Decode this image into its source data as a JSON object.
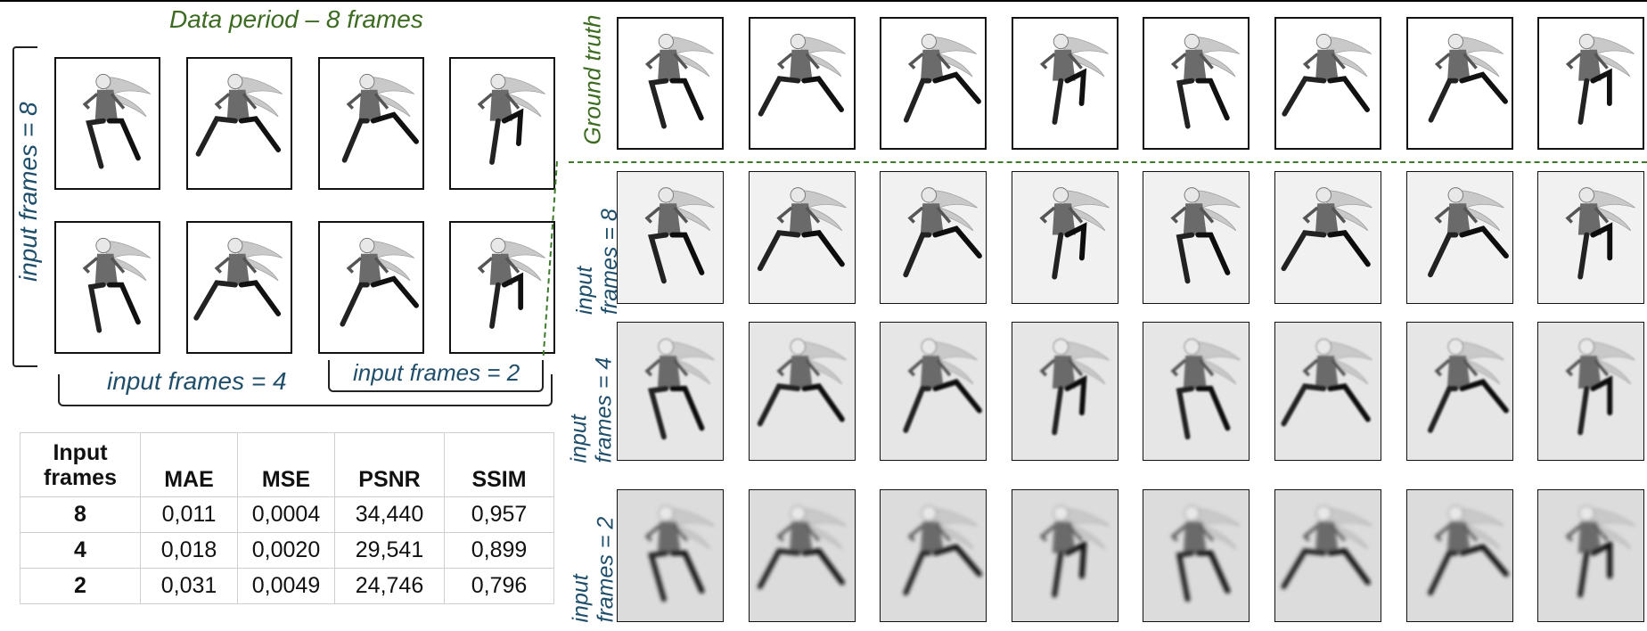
{
  "labels": {
    "data_period": "Data period – 8 frames",
    "ground_truth": "Ground truth",
    "input_frames_8_left": "input frames = 8",
    "input_frames_4": "input frames = 4",
    "input_frames_2": "input frames = 2",
    "row_8": "input frames = 8",
    "row_4": "input frames = 4",
    "row_2": "input frames = 2"
  },
  "table": {
    "headers": [
      "Input frames",
      "MAE",
      "MSE",
      "PSNR",
      "SSIM"
    ],
    "rows": [
      [
        "8",
        "0,011",
        "0,0004",
        "34,440",
        "0,957"
      ],
      [
        "4",
        "0,018",
        "0,0020",
        "29,541",
        "0,899"
      ],
      [
        "2",
        "0,031",
        "0,0049",
        "24,746",
        "0,796"
      ]
    ]
  },
  "rows": [
    {
      "name": "ground-truth",
      "background": "#ffffff",
      "blur": 0
    },
    {
      "name": "pred-8",
      "background": "#f1f1f1",
      "blur": 0.2
    },
    {
      "name": "pred-4",
      "background": "#e6e6e6",
      "blur": 0.9
    },
    {
      "name": "pred-2",
      "background": "#dcdcdc",
      "blur": 1.8
    }
  ],
  "frame_count": 8
}
